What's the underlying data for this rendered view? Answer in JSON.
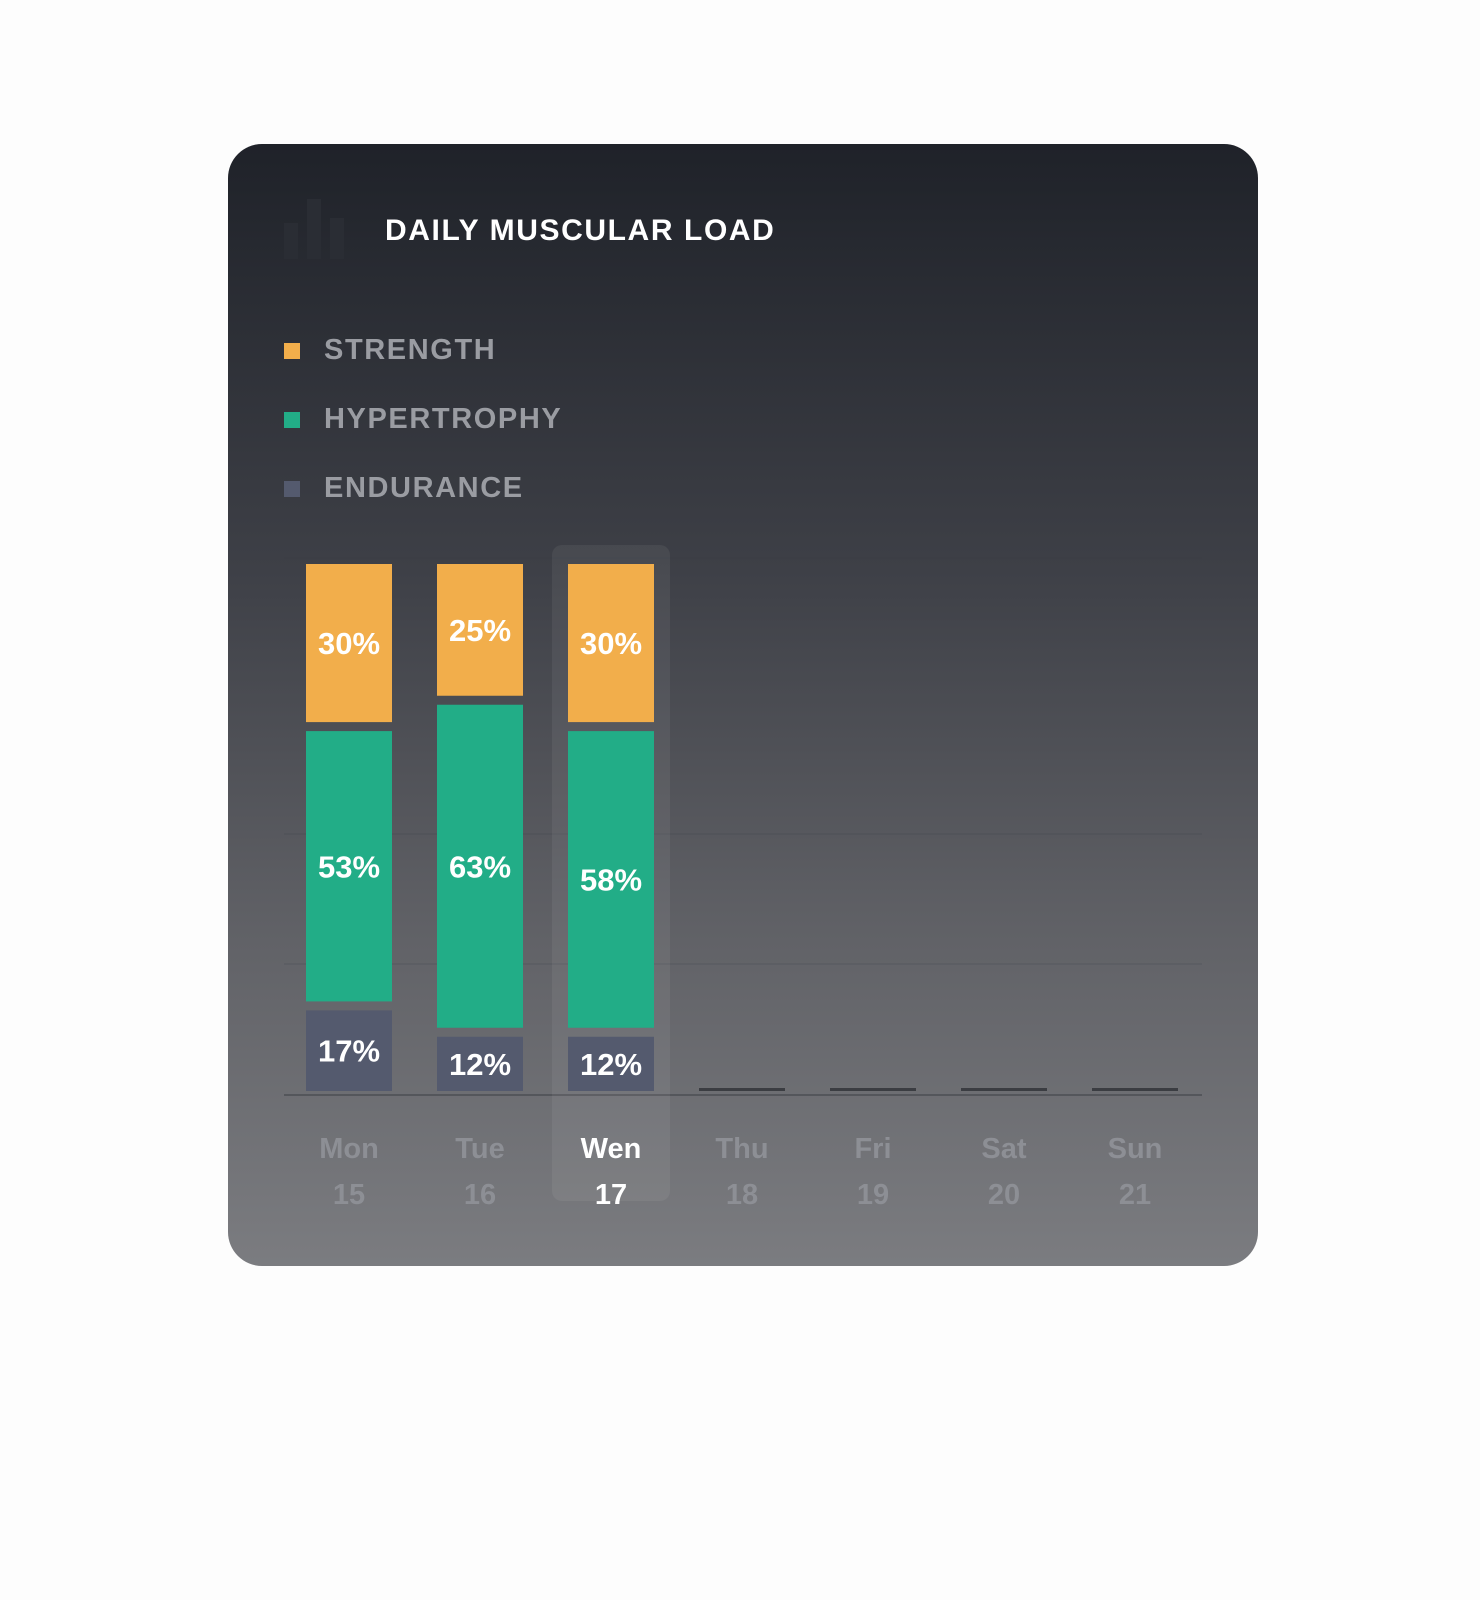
{
  "card": {
    "title": "DAILY MUSCULAR LOAD",
    "icon": "bar-chart-icon"
  },
  "legend": [
    {
      "label": "STRENGTH",
      "color": "#f2ae4b"
    },
    {
      "label": "HYPERTROPHY",
      "color": "#22ad87"
    },
    {
      "label": "ENDURANCE",
      "color": "#545a6e"
    }
  ],
  "colors": {
    "strength": "#f2ae4b",
    "hypertrophy": "#22ad87",
    "endurance": "#545a6e",
    "label_active": "#ffffff",
    "label_inactive": "#8d8f95"
  },
  "chart_data": {
    "type": "bar",
    "stacked": true,
    "categories": [
      "Mon 15",
      "Tue 16",
      "Wen 17",
      "Thu 18",
      "Fri 19",
      "Sat 20",
      "Sun 21"
    ],
    "days": [
      {
        "name": "Mon",
        "date": "15",
        "active": false
      },
      {
        "name": "Tue",
        "date": "16",
        "active": false
      },
      {
        "name": "Wen",
        "date": "17",
        "active": true
      },
      {
        "name": "Thu",
        "date": "18",
        "active": false
      },
      {
        "name": "Fri",
        "date": "19",
        "active": false
      },
      {
        "name": "Sat",
        "date": "20",
        "active": false
      },
      {
        "name": "Sun",
        "date": "21",
        "active": false
      }
    ],
    "series": [
      {
        "name": "STRENGTH",
        "values": [
          30,
          25,
          30,
          null,
          null,
          null,
          null
        ]
      },
      {
        "name": "HYPERTROPHY",
        "values": [
          53,
          63,
          58,
          null,
          null,
          null,
          null
        ]
      },
      {
        "name": "ENDURANCE",
        "values": [
          17,
          12,
          12,
          null,
          null,
          null,
          null
        ]
      }
    ],
    "value_labels": [
      [
        "30%",
        "25%",
        "30%",
        "",
        "",
        "",
        ""
      ],
      [
        "53%",
        "63%",
        "58%",
        "",
        "",
        "",
        ""
      ],
      [
        "17%",
        "12%",
        "12%",
        "",
        "",
        "",
        ""
      ]
    ],
    "ylim": [
      0,
      100
    ],
    "unit": "%",
    "grid": true,
    "legend_position": "top-left",
    "highlighted_category": "Wen 17"
  }
}
